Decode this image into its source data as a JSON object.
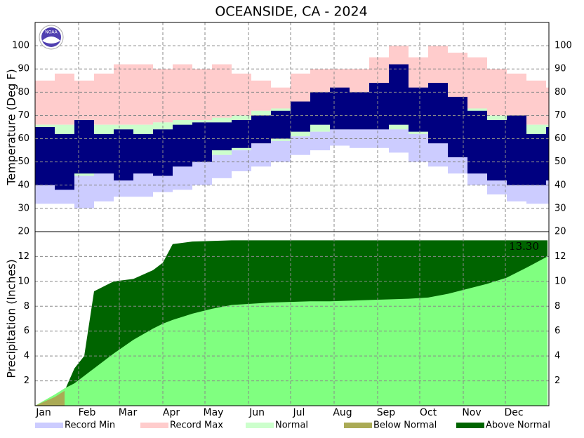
{
  "chart_data": [
    {
      "type": "temperature",
      "title": "OCEANSIDE, CA - 2024",
      "y_label": "Temperature (Deg F)",
      "x": [
        1,
        15,
        29,
        43,
        57,
        71,
        85,
        99,
        113,
        127,
        141,
        155,
        169,
        183,
        197,
        211,
        225,
        239,
        253,
        267,
        281,
        295,
        309,
        323,
        337,
        351,
        365
      ],
      "xlim": [
        1,
        367
      ],
      "xticks": [
        {
          "value": 1,
          "label": "Jan"
        },
        {
          "value": 32,
          "label": "Feb"
        },
        {
          "value": 61,
          "label": "Mar"
        },
        {
          "value": 92,
          "label": "Apr"
        },
        {
          "value": 122,
          "label": "May"
        },
        {
          "value": 153,
          "label": "Jun"
        },
        {
          "value": 183,
          "label": "Jul"
        },
        {
          "value": 214,
          "label": "Aug"
        },
        {
          "value": 245,
          "label": "Sep"
        },
        {
          "value": 275,
          "label": "Oct"
        },
        {
          "value": 306,
          "label": "Nov"
        },
        {
          "value": 336,
          "label": "Dec"
        }
      ],
      "ylim": [
        20,
        110
      ],
      "yticks": [
        20,
        30,
        40,
        50,
        60,
        70,
        80,
        90,
        100
      ],
      "grid": true,
      "series": [
        {
          "name": "Record Max",
          "color": "#ffcccc",
          "values": [
            85,
            88,
            85,
            88,
            92,
            92,
            90,
            92,
            90,
            92,
            88,
            85,
            82,
            88,
            90,
            90,
            90,
            95,
            100,
            95,
            100,
            97,
            95,
            90,
            88,
            85,
            82
          ]
        },
        {
          "name": "Record Min",
          "color": "#ccccff",
          "values": [
            32,
            32,
            30,
            33,
            35,
            35,
            37,
            38,
            40,
            43,
            46,
            48,
            50,
            53,
            55,
            57,
            56,
            56,
            54,
            50,
            48,
            45,
            40,
            36,
            33,
            32,
            32
          ]
        },
        {
          "name": "Normal",
          "color": "#ccffcc",
          "values": [
            66,
            66,
            66,
            66,
            66,
            66,
            67,
            68,
            68,
            69,
            70,
            72,
            73,
            75,
            77,
            78,
            79,
            79,
            79,
            78,
            77,
            75,
            73,
            70,
            68,
            66,
            66
          ],
          "low_values": [
            44,
            44,
            44,
            45,
            46,
            47,
            48,
            50,
            51,
            53,
            55,
            58,
            59,
            61,
            63,
            64,
            65,
            65,
            64,
            62,
            59,
            56,
            52,
            48,
            45,
            43,
            43
          ]
        },
        {
          "color": "#000080",
          "values": [
            65,
            62,
            68,
            62,
            64,
            62,
            64,
            66,
            67,
            67,
            68,
            70,
            72,
            76,
            80,
            82,
            80,
            84,
            92,
            82,
            84,
            78,
            72,
            68,
            70,
            62,
            65
          ],
          "low_values": [
            40,
            38,
            45,
            45,
            42,
            45,
            44,
            48,
            50,
            55,
            56,
            58,
            60,
            63,
            66,
            64,
            64,
            64,
            66,
            63,
            58,
            52,
            45,
            42,
            40,
            40,
            42
          ]
        }
      ]
    },
    {
      "type": "precipitation",
      "y_label": "Precipitation (Inches)",
      "annotation": "13.30",
      "x": [
        1,
        15,
        22,
        29,
        36,
        43,
        57,
        71,
        85,
        92,
        99,
        113,
        127,
        141,
        155,
        169,
        183,
        197,
        211,
        225,
        239,
        253,
        267,
        281,
        295,
        309,
        323,
        337,
        351,
        366
      ],
      "xlim": [
        1,
        367
      ],
      "ylim": [
        0,
        14
      ],
      "yticks": [
        2,
        4,
        6,
        8,
        10,
        12
      ],
      "grid": true,
      "series": [
        {
          "name": "Normal",
          "color": "#80ff80",
          "values": [
            0,
            0.9,
            1.4,
            1.8,
            2.4,
            3.0,
            4.2,
            5.3,
            6.2,
            6.6,
            6.9,
            7.4,
            7.8,
            8.1,
            8.2,
            8.3,
            8.35,
            8.4,
            8.4,
            8.45,
            8.5,
            8.55,
            8.6,
            8.7,
            9.0,
            9.4,
            9.8,
            10.3,
            11.1,
            12.0
          ]
        },
        {
          "name": "Above Normal",
          "color": "#006400",
          "values": [
            0,
            0.7,
            1.2,
            3.0,
            4.0,
            9.2,
            10.0,
            10.2,
            10.9,
            11.5,
            13.0,
            13.2,
            13.25,
            13.3,
            13.3,
            13.3,
            13.3,
            13.3,
            13.3,
            13.3,
            13.3,
            13.3,
            13.3,
            13.3,
            13.3,
            13.3,
            13.3,
            13.3,
            13.3,
            13.3
          ]
        }
      ],
      "below_normal": {
        "name": "Below Normal",
        "color": "#aaaa55"
      }
    }
  ]
}
